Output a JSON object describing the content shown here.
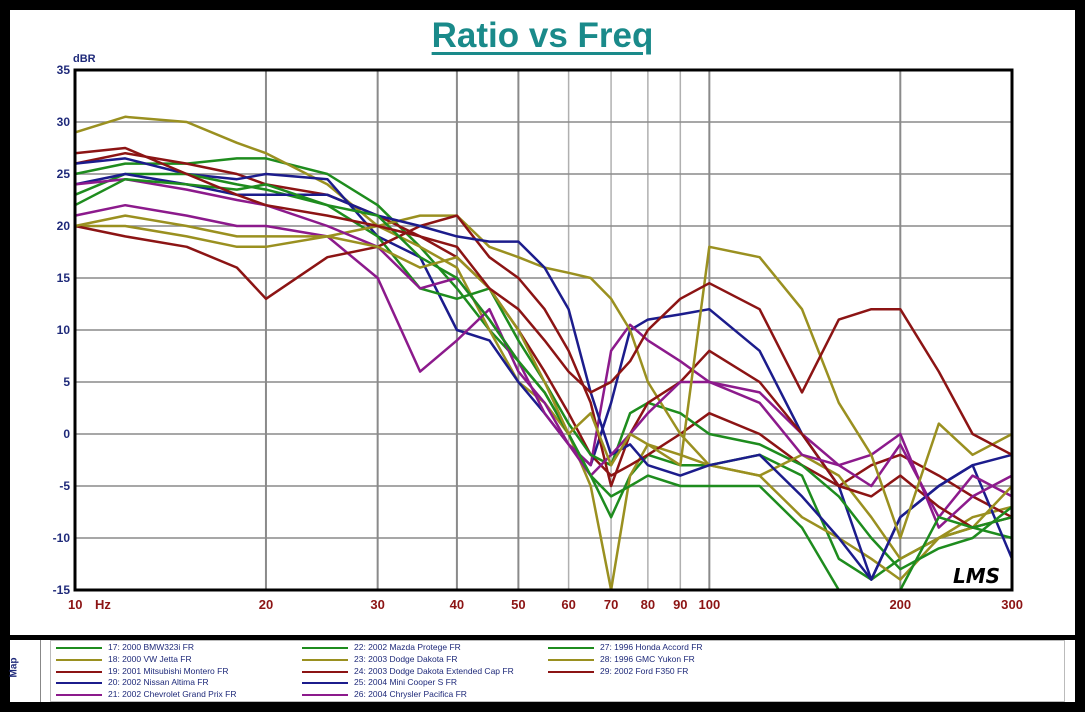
{
  "title": "Ratio vs Freq",
  "legend_tab": "Map",
  "chart_data": {
    "type": "line",
    "title": "Ratio vs Freq",
    "xlabel": "Hz",
    "ylabel": "dBR",
    "xscale": "log",
    "xlim": [
      10,
      300
    ],
    "ylim": [
      -15,
      35
    ],
    "x_ticks": [
      "10",
      "20",
      "30",
      "40",
      "50",
      "60",
      "70",
      "80",
      "90",
      "100",
      "200",
      "300"
    ],
    "y_ticks": [
      "35",
      "30",
      "25",
      "20",
      "15",
      "10",
      "5",
      "0",
      "-5",
      "-10",
      "-15"
    ],
    "grid": true,
    "watermark": "LMS",
    "x": [
      10,
      12,
      15,
      18,
      20,
      25,
      30,
      35,
      40,
      45,
      50,
      55,
      60,
      65,
      70,
      75,
      80,
      90,
      100,
      120,
      140,
      160,
      180,
      200,
      230,
      260,
      300
    ],
    "series": [
      {
        "name": "17: 2000 BMW323i FR",
        "color": "#1e8c1e",
        "values": [
          25,
          26,
          26,
          26.5,
          26.5,
          25,
          22,
          18,
          14,
          10,
          7,
          4,
          0,
          -4,
          -8,
          -4,
          -2,
          -3,
          -3,
          -2,
          -4,
          -12,
          -14,
          -12,
          -10,
          -9,
          -10
        ]
      },
      {
        "name": "18: 2000 VW Jetta FR",
        "color": "#9a9020",
        "values": [
          29,
          30.5,
          30,
          28,
          27,
          24,
          20,
          18,
          16,
          10,
          5,
          3,
          0,
          -5,
          -15,
          -4,
          -1,
          -2,
          -3,
          -4,
          -8,
          -10,
          -12,
          -14,
          -10,
          -8,
          -7
        ]
      },
      {
        "name": "19: 2001 Mitsubishi Montero FR",
        "color": "#8c1414",
        "values": [
          26,
          27,
          26,
          25,
          24,
          23,
          21,
          19,
          17,
          14,
          10,
          6,
          2,
          -2,
          -4,
          -3,
          -2,
          0,
          2,
          0,
          -3,
          -5,
          -3,
          -2,
          -4,
          -6,
          -8
        ]
      },
      {
        "name": "20: 2002 Nissan Altima FR",
        "color": "#1c1c8c",
        "values": [
          26,
          26.5,
          25,
          24.5,
          25,
          24.5,
          19,
          17,
          10,
          9,
          5,
          2,
          -1,
          -3,
          3,
          10,
          11,
          11.5,
          12,
          8,
          0,
          -5,
          -14,
          -8,
          -5,
          -3,
          -12
        ]
      },
      {
        "name": "21: 2002 Chevrolet Grand Prix FR",
        "color": "#8c1a8c",
        "values": [
          21,
          22,
          21,
          20,
          20,
          19,
          15,
          6,
          9,
          12,
          6,
          3,
          -1,
          -3,
          8,
          10.5,
          9,
          7,
          5,
          4,
          0,
          -3,
          -5,
          -1,
          -8,
          -4,
          -6
        ]
      },
      {
        "name": "22: 2002 Mazda Protege FR",
        "color": "#1e8c1e",
        "values": [
          23,
          25,
          25,
          24,
          23.5,
          22,
          19,
          14,
          13,
          14,
          9,
          5,
          1,
          -2,
          -3,
          2,
          3,
          2,
          0,
          -1,
          -3,
          -6,
          -10,
          -13,
          -11,
          -10,
          -7
        ]
      },
      {
        "name": "23: 2003 Dodge Dakota FR",
        "color": "#9a9020",
        "values": [
          20,
          20,
          19,
          18,
          18,
          19,
          20,
          21,
          21,
          18,
          17,
          16,
          15.5,
          15,
          13,
          10,
          5,
          0,
          -3,
          -4,
          -2,
          -4,
          -8,
          -12,
          -10,
          -9,
          -5
        ]
      },
      {
        "name": "24: 2003 Dodge Dakota Extended Cap FR",
        "color": "#8c1414",
        "values": [
          20,
          19,
          18,
          16,
          13,
          17,
          18,
          20,
          21,
          17,
          15,
          12,
          8,
          3,
          -5,
          0,
          3,
          5,
          8,
          5,
          0,
          -5,
          -6,
          -4,
          -7,
          -9,
          -8
        ]
      },
      {
        "name": "25: 2004 Mini Cooper S FR",
        "color": "#1c1c8c",
        "values": [
          24,
          25,
          24,
          23,
          23,
          23,
          21,
          20,
          19,
          18.5,
          18.5,
          16,
          12,
          4,
          -2,
          -1,
          -3,
          -4,
          -3,
          -2,
          -6,
          -10,
          -14,
          -8,
          -5,
          -3,
          -2
        ]
      },
      {
        "name": "26: 2004 Chrysler Pacifica FR",
        "color": "#8c1a8c",
        "values": [
          24,
          24.5,
          23.5,
          22.5,
          22,
          20,
          18,
          14,
          15,
          11,
          7,
          2,
          -1,
          -4,
          -2,
          0,
          2,
          5,
          5,
          3,
          -2,
          -3,
          -2,
          0,
          -9,
          -6,
          -4
        ]
      },
      {
        "name": "27: 1996 Honda Accord FR",
        "color": "#1e8c1e",
        "values": [
          22,
          24.5,
          24,
          23.5,
          24,
          22,
          21,
          17,
          15,
          11,
          7,
          4,
          0,
          -4,
          -6,
          -5,
          -4,
          -5,
          -5,
          -5,
          -9,
          -15,
          -15,
          -15,
          -8,
          -9,
          -8
        ]
      },
      {
        "name": "28: 1996 GMC Yukon FR",
        "color": "#9a9020",
        "values": [
          20,
          21,
          20,
          19,
          19,
          19,
          18,
          16,
          17,
          14,
          10,
          5,
          0,
          2,
          -3,
          0,
          -1,
          -3,
          18,
          17,
          12,
          3,
          -2,
          -10,
          1,
          -2,
          0
        ]
      },
      {
        "name": "29: 2002 Ford F350 FR",
        "color": "#8c1414",
        "values": [
          27,
          27.5,
          25,
          23,
          22,
          21,
          20,
          19,
          18,
          14,
          12,
          9,
          6,
          4,
          5,
          7,
          10,
          13,
          14.5,
          12,
          4,
          11,
          12,
          12,
          6,
          0,
          -2
        ]
      }
    ]
  }
}
